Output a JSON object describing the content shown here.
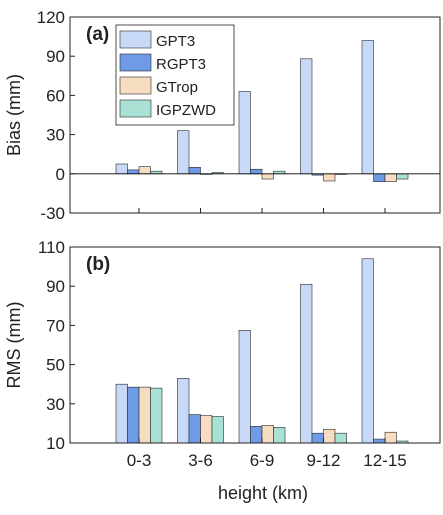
{
  "colors": {
    "GPT3": "#c7d9f6",
    "RGPT3": "#6f9be6",
    "GTrop": "#f6dcc0",
    "IGPZWD": "#a9e2d4",
    "edge": "#2a2a2a"
  },
  "chart_data": [
    {
      "type": "bar",
      "panel_label": "(a)",
      "ylabel": "Bias (mm)",
      "ylim": [
        -30,
        120
      ],
      "yticks": [
        -30,
        0,
        30,
        60,
        90,
        120
      ],
      "categories": [
        "0-3",
        "3-6",
        "6-9",
        "9-12",
        "12-15"
      ],
      "show_category_labels": false,
      "legend": {
        "position": "top-left",
        "entries": [
          "GPT3",
          "RGPT3",
          "GTrop",
          "IGPZWD"
        ]
      },
      "series": [
        {
          "name": "GPT3",
          "values": [
            7.5,
            33,
            63,
            88,
            102
          ]
        },
        {
          "name": "RGPT3",
          "values": [
            3,
            5,
            3.5,
            -1,
            -6
          ]
        },
        {
          "name": "GTrop",
          "values": [
            5.5,
            0,
            -4,
            -5.5,
            -6
          ]
        },
        {
          "name": "IGPZWD",
          "values": [
            2,
            1,
            2,
            -0.5,
            -4
          ]
        }
      ]
    },
    {
      "type": "bar",
      "panel_label": "(b)",
      "ylabel": "RMS (mm)",
      "xlabel": "height (km)",
      "ylim": [
        10,
        110
      ],
      "yticks": [
        10,
        30,
        50,
        70,
        90,
        110
      ],
      "categories": [
        "0-3",
        "3-6",
        "6-9",
        "9-12",
        "12-15"
      ],
      "show_category_labels": true,
      "series": [
        {
          "name": "GPT3",
          "values": [
            40,
            43,
            67.5,
            91,
            104
          ]
        },
        {
          "name": "RGPT3",
          "values": [
            38.5,
            24.5,
            18.5,
            15,
            12
          ]
        },
        {
          "name": "GTrop",
          "values": [
            38.5,
            24,
            19,
            17,
            15.5
          ]
        },
        {
          "name": "IGPZWD",
          "values": [
            38,
            23.5,
            18,
            15,
            11
          ]
        }
      ]
    }
  ]
}
